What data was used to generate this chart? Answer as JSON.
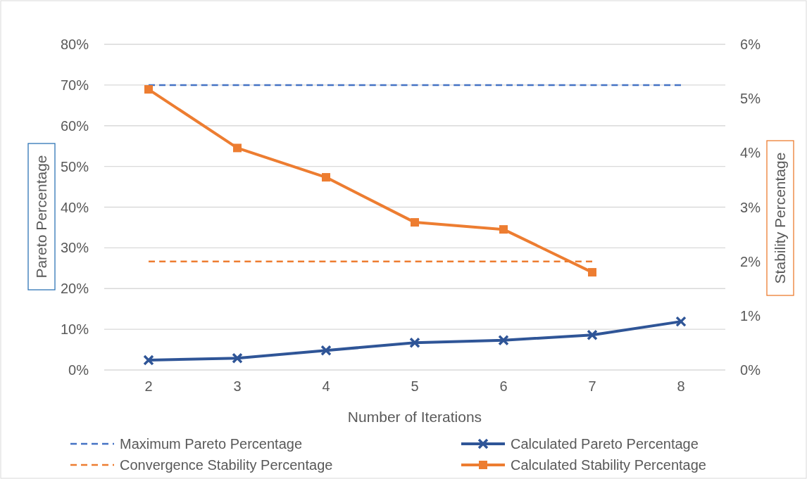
{
  "chart_data": {
    "type": "line",
    "xlabel": "Number of Iterations",
    "ylabel": "Pareto Percentage",
    "y2label": "Stability Percentage",
    "categories": [
      "2",
      "3",
      "4",
      "5",
      "6",
      "7",
      "8"
    ],
    "series": [
      {
        "name": "Maximum Pareto Percentage",
        "color": "#4472c4",
        "values": [
          70,
          70,
          70,
          70,
          70,
          70,
          70
        ],
        "line_style": "dashed",
        "marker": "none"
      },
      {
        "name": "Calculated Pareto Percentage",
        "color": "#2f5597",
        "values": [
          2.4,
          2.9,
          4.8,
          6.7,
          7.3,
          8.6,
          11.9
        ],
        "line_style": "solid",
        "marker": "cross"
      },
      {
        "name": "Convergence Stability Percentage",
        "color": "#ed7d31",
        "values": [
          2,
          2,
          2,
          2,
          2,
          2,
          null
        ],
        "axis": "y2",
        "line_style": "dashed",
        "marker": "none"
      },
      {
        "name": "Calculated Stability Percentage",
        "color": "#ed7d31",
        "values": [
          5.17,
          4.09,
          3.55,
          2.72,
          2.59,
          1.8,
          null
        ],
        "axis": "y2",
        "line_style": "solid",
        "marker": "square"
      }
    ],
    "ylim": [
      0,
      80
    ],
    "yticks": [
      {
        "value": 0,
        "label": "0%"
      },
      {
        "value": 10,
        "label": "10%"
      },
      {
        "value": 20,
        "label": "20%"
      },
      {
        "value": 30,
        "label": "30%"
      },
      {
        "value": 40,
        "label": "40%"
      },
      {
        "value": 50,
        "label": "50%"
      },
      {
        "value": 60,
        "label": "60%"
      },
      {
        "value": 70,
        "label": "70%"
      },
      {
        "value": 80,
        "label": "80%"
      }
    ],
    "y2lim": [
      0,
      6
    ],
    "y2ticks": [
      {
        "value": 0,
        "label": "0%"
      },
      {
        "value": 1,
        "label": "1%"
      },
      {
        "value": 2,
        "label": "2%"
      },
      {
        "value": 3,
        "label": "3%"
      },
      {
        "value": 4,
        "label": "4%"
      },
      {
        "value": 5,
        "label": "5%"
      },
      {
        "value": 6,
        "label": "6%"
      }
    ],
    "grid": "y",
    "legend": "bottom"
  }
}
